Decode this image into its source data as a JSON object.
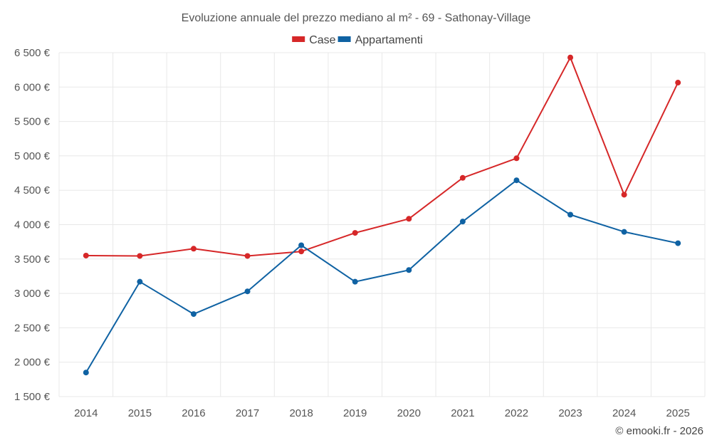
{
  "chart_data": {
    "type": "line",
    "title": "Evoluzione annuale del prezzo mediano al m² - 69 - Sathonay-Village",
    "xlabel": "",
    "ylabel": "",
    "categories": [
      "2014",
      "2015",
      "2016",
      "2017",
      "2018",
      "2019",
      "2020",
      "2021",
      "2022",
      "2023",
      "2024",
      "2025"
    ],
    "series": [
      {
        "name": "Case",
        "color": "#d62728",
        "values": [
          3550,
          3545,
          3650,
          3545,
          3610,
          3880,
          4085,
          4680,
          4965,
          6430,
          4435,
          6065
        ]
      },
      {
        "name": "Appartamenti",
        "color": "#0f62a3",
        "values": [
          1850,
          3170,
          2700,
          3030,
          3700,
          3170,
          3340,
          4045,
          4645,
          4145,
          3895,
          3730
        ]
      }
    ],
    "ylim": [
      1500,
      6500
    ],
    "yticks": [
      1500,
      2000,
      2500,
      3000,
      3500,
      4000,
      4500,
      5000,
      5500,
      6000,
      6500
    ],
    "ytick_labels": [
      "1 500 €",
      "2 000 €",
      "2 500 €",
      "3 000 €",
      "3 500 €",
      "4 000 €",
      "4 500 €",
      "5 000 €",
      "5 500 €",
      "6 000 €",
      "6 500 €"
    ],
    "grid": true,
    "legend_position": "top-center"
  },
  "credit": "© emooki.fr - 2026"
}
